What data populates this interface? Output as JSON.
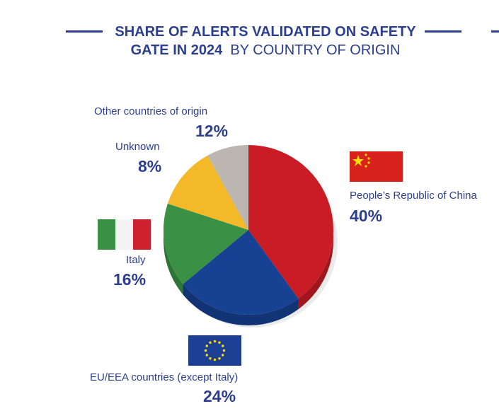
{
  "chart_data": {
    "type": "pie",
    "title_bold": "SHARE OF ALERTS VALIDATED ON SAFETY",
    "title_bold2": "GATE IN 2024",
    "title_rest": "BY COUNTRY OF ORIGIN",
    "slices": [
      {
        "label": "People’s Republic of China",
        "value": 40,
        "pct": "40%",
        "color": "#c91c24"
      },
      {
        "label": "EU/EEA countries (except Italy)",
        "value": 24,
        "pct": "24%",
        "color": "#174192"
      },
      {
        "label": "Italy",
        "value": 16,
        "pct": "16%",
        "color": "#3a9145"
      },
      {
        "label": "Other countries of origin",
        "value": 12,
        "pct": "12%",
        "color": "#f4b929"
      },
      {
        "label": "Unknown",
        "value": 8,
        "pct": "8%",
        "color": "#bbb6b0"
      }
    ]
  }
}
